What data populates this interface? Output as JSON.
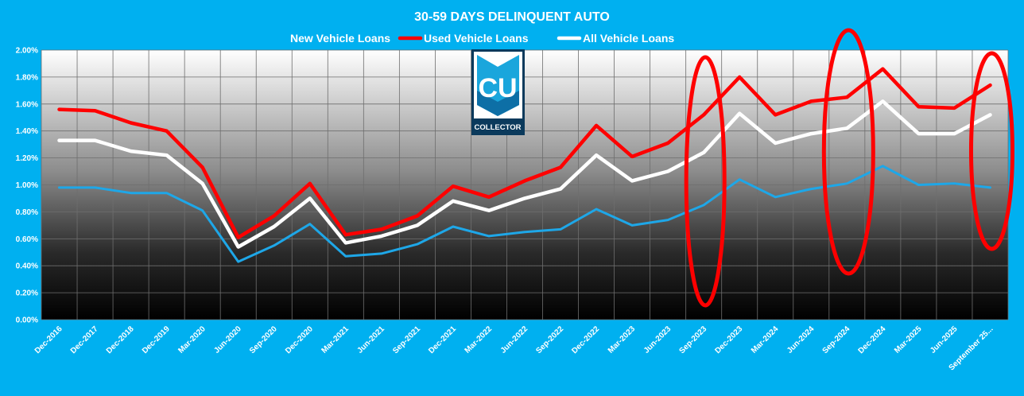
{
  "chart_data": {
    "type": "line",
    "title": "30-59 DAYS DELINQUENT AUTO",
    "legend_position": "top-center",
    "grid": true,
    "ylim": [
      0,
      2.0
    ],
    "y_ticks": [
      "0.00%",
      "0.20%",
      "0.40%",
      "0.60%",
      "0.80%",
      "1.00%",
      "1.20%",
      "1.40%",
      "1.60%",
      "1.80%",
      "2.00%"
    ],
    "categories": [
      "Dec-2016",
      "Dec-2017",
      "Dec-2018",
      "Dec-2019",
      "Mar-2020",
      "Jun-2020",
      "Sep-2020",
      "Dec-2020",
      "Mar-2021",
      "Jun-2021",
      "Sep-2021",
      "Dec-2021",
      "Mar-2022",
      "Jun-2022",
      "Sep-2022",
      "Dec-2022",
      "Mar-2023",
      "Jun-2023",
      "Sep-2023",
      "Dec-2023",
      "Mar-2024",
      "Jun-2024",
      "Sep-2024",
      "Dec-2024",
      "Mar-2025",
      "Jun-2025",
      "September 25..."
    ],
    "series": [
      {
        "name": "New Vehicle Loans",
        "color": "#1ea7e8",
        "values": [
          0.98,
          0.98,
          0.94,
          0.94,
          0.81,
          0.43,
          0.55,
          0.71,
          0.47,
          0.49,
          0.56,
          0.69,
          0.62,
          0.65,
          0.67,
          0.82,
          0.7,
          0.74,
          0.85,
          1.04,
          0.91,
          0.97,
          1.01,
          1.14,
          1.0,
          1.01,
          0.98
        ]
      },
      {
        "name": "Used Vehicle Loans",
        "color": "#ff0000",
        "values": [
          1.56,
          1.55,
          1.46,
          1.4,
          1.13,
          0.61,
          0.77,
          1.01,
          0.63,
          0.67,
          0.77,
          0.99,
          0.91,
          1.03,
          1.13,
          1.44,
          1.21,
          1.31,
          1.52,
          1.8,
          1.52,
          1.62,
          1.65,
          1.86,
          1.58,
          1.57,
          1.74
        ]
      },
      {
        "name": "All Vehicle Loans",
        "color": "#ffffff",
        "values": [
          1.33,
          1.33,
          1.25,
          1.22,
          1.01,
          0.54,
          0.69,
          0.9,
          0.57,
          0.62,
          0.7,
          0.88,
          0.81,
          0.9,
          0.97,
          1.22,
          1.03,
          1.1,
          1.24,
          1.53,
          1.31,
          1.38,
          1.42,
          1.62,
          1.38,
          1.38,
          1.52
        ]
      }
    ],
    "annotations": [
      {
        "type": "ellipse",
        "color": "#ff0000",
        "around_category": "Sep-2023"
      },
      {
        "type": "ellipse",
        "color": "#ff0000",
        "around_category": "Sep-2024"
      },
      {
        "type": "ellipse",
        "color": "#ff0000",
        "around_category": "September 25..."
      }
    ]
  },
  "logo": {
    "text": "COLLECTOR",
    "mark": "CU"
  }
}
